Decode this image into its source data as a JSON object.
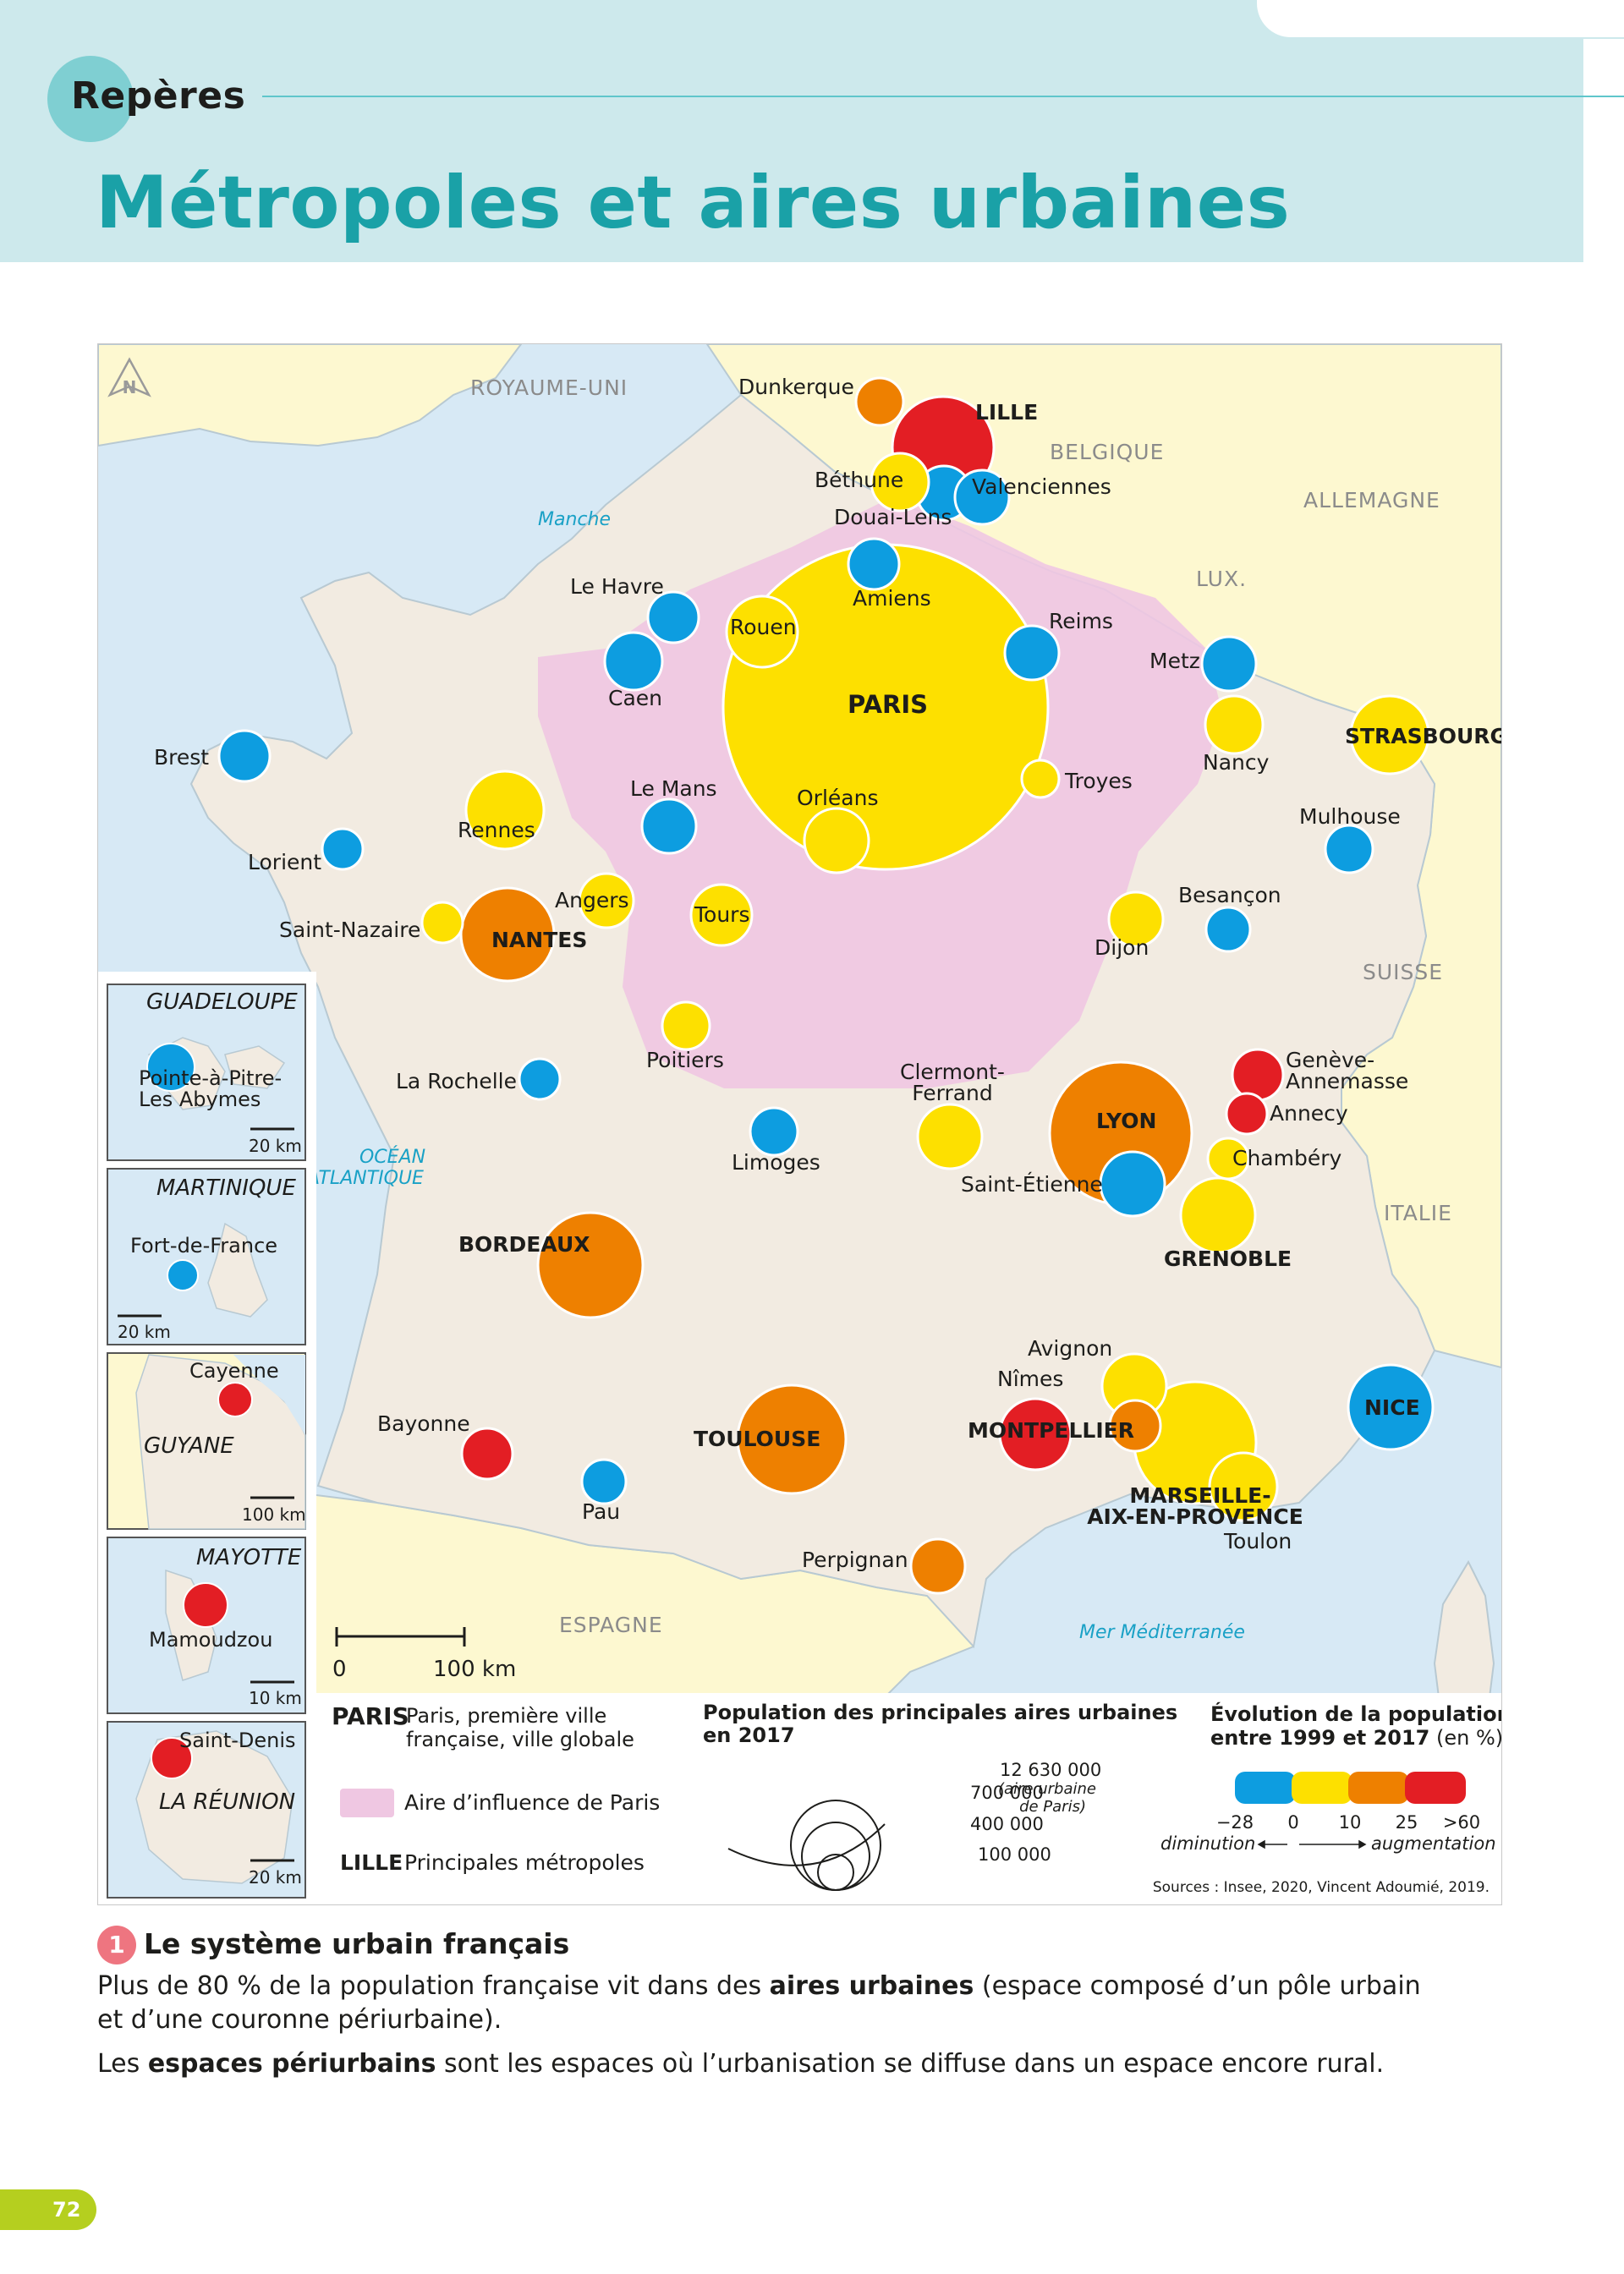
{
  "header": {
    "section": "Repères",
    "title": "Métropoles et aires urbaines"
  },
  "map": {
    "countries": [
      "ROYAUME-UNI",
      "BELGIQUE",
      "ALLEMAGNE",
      "LUX.",
      "SUISSE",
      "ITALIE",
      "ESPAGNE"
    ],
    "seas": [
      "Manche",
      "OCÉAN ATLANTIQUE",
      "Mer Méditerranée"
    ],
    "north": "N",
    "influence_zone_color": "#efc7e2",
    "land_color": "#f2ebe1",
    "sea_color": "#d7e9f5",
    "neighbor_color": "#fdf8d0",
    "scale": {
      "zero": "0",
      "label": "100 km"
    },
    "cities": [
      {
        "name": "PARIS",
        "evo": "yellow",
        "pop": 12630000,
        "metro": true
      },
      {
        "name": "LILLE",
        "evo": "red",
        "metro": true
      },
      {
        "name": "Dunkerque",
        "evo": "orange"
      },
      {
        "name": "Béthune",
        "evo": "yellow"
      },
      {
        "name": "Valenciennes",
        "evo": "blue"
      },
      {
        "name": "Douai-Lens",
        "evo": "blue"
      },
      {
        "name": "Amiens",
        "evo": "blue"
      },
      {
        "name": "Le Havre",
        "evo": "blue"
      },
      {
        "name": "Rouen",
        "evo": "yellow"
      },
      {
        "name": "Caen",
        "evo": "blue"
      },
      {
        "name": "Reims",
        "evo": "blue"
      },
      {
        "name": "Metz",
        "evo": "blue"
      },
      {
        "name": "Nancy",
        "evo": "yellow"
      },
      {
        "name": "STRASBOURG",
        "evo": "yellow",
        "metro": true
      },
      {
        "name": "Mulhouse",
        "evo": "blue"
      },
      {
        "name": "Troyes",
        "evo": "yellow"
      },
      {
        "name": "Brest",
        "evo": "blue"
      },
      {
        "name": "Rennes",
        "evo": "yellow"
      },
      {
        "name": "Lorient",
        "evo": "blue"
      },
      {
        "name": "Le Mans",
        "evo": "blue"
      },
      {
        "name": "Orléans",
        "evo": "yellow"
      },
      {
        "name": "Angers",
        "evo": "yellow"
      },
      {
        "name": "Tours",
        "evo": "yellow"
      },
      {
        "name": "Saint-Nazaire",
        "evo": "yellow"
      },
      {
        "name": "NANTES",
        "evo": "orange",
        "metro": true
      },
      {
        "name": "Besançon",
        "evo": "blue"
      },
      {
        "name": "Dijon",
        "evo": "yellow"
      },
      {
        "name": "Poitiers",
        "evo": "yellow"
      },
      {
        "name": "La Rochelle",
        "evo": "blue"
      },
      {
        "name": "Limoges",
        "evo": "blue"
      },
      {
        "name": "Clermont-Ferrand",
        "evo": "yellow"
      },
      {
        "name": "LYON",
        "evo": "orange",
        "metro": true
      },
      {
        "name": "Saint-Étienne",
        "evo": "blue"
      },
      {
        "name": "Genève-Annemasse",
        "evo": "red"
      },
      {
        "name": "Annecy",
        "evo": "red"
      },
      {
        "name": "Chambéry",
        "evo": "yellow"
      },
      {
        "name": "GRENOBLE",
        "evo": "yellow",
        "metro": true
      },
      {
        "name": "BORDEAUX",
        "evo": "orange",
        "metro": true
      },
      {
        "name": "Avignon",
        "evo": "yellow"
      },
      {
        "name": "Nîmes",
        "evo": "orange"
      },
      {
        "name": "NICE",
        "evo": "blue",
        "metro": true
      },
      {
        "name": "MONTPELLIER",
        "evo": "red",
        "metro": true
      },
      {
        "name": "TOULOUSE",
        "evo": "orange",
        "metro": true
      },
      {
        "name": "Bayonne",
        "evo": "red"
      },
      {
        "name": "Pau",
        "evo": "blue"
      },
      {
        "name": "MARSEILLE-AIX-EN-PROVENCE",
        "evo": "yellow",
        "metro": true
      },
      {
        "name": "Toulon",
        "evo": "yellow"
      },
      {
        "name": "Perpignan",
        "evo": "orange"
      }
    ],
    "insets": [
      {
        "name": "GUADELOUPE",
        "city": "Pointe-à-Pitre-Les Abymes",
        "scale": "20 km",
        "evo": "blue"
      },
      {
        "name": "MARTINIQUE",
        "city": "Fort-de-France",
        "scale": "20 km",
        "evo": "blue"
      },
      {
        "name": "GUYANE",
        "city": "Cayenne",
        "scale": "100 km",
        "evo": "red"
      },
      {
        "name": "MAYOTTE",
        "city": "Mamoudzou",
        "scale": "10 km",
        "evo": "red"
      },
      {
        "name": "LA RÉUNION",
        "city": "Saint-Denis",
        "scale": "20 km",
        "evo": "red"
      }
    ]
  },
  "legend": {
    "paris_code": "PARIS",
    "paris_desc": "Paris, première ville française, ville globale",
    "influence_label": "Aire d’influence de Paris",
    "metro_code": "LILLE",
    "metro_label": "Principales métropoles",
    "pop_title": "Population des principales aires urbaines en 2017",
    "pop_values": [
      "700 000",
      "400 000",
      "100 000"
    ],
    "pop_paris": "12 630 000",
    "pop_paris_note": "(aire urbaine de Paris)",
    "evo_title_bold": "Évolution de la population entre 1999 et 2017",
    "evo_title_unit": "(en %)",
    "evo_colors": [
      "#0d9de0",
      "#fde000",
      "#ee8000",
      "#e31e24"
    ],
    "evo_ticks": [
      "−28",
      "0",
      "10",
      "25",
      ">60"
    ],
    "evo_left": "diminution",
    "evo_right": "augmentation",
    "sources": "Sources : Insee, 2020, Vincent Adoumié, 2019."
  },
  "caption": {
    "number": "1",
    "title": "Le système urbain français",
    "p1_a": "Plus de 80 % de la population française vit dans des ",
    "p1_b": "aires urbaines",
    "p1_c": " (espace composé d’un pôle urbain",
    "p1_d": "et d’une couronne périurbaine).",
    "p2_a": "Les ",
    "p2_b": "espaces périurbains",
    "p2_c": " sont les espaces où l’urbanisation se diffuse dans un espace encore rural."
  },
  "page_number": "72"
}
